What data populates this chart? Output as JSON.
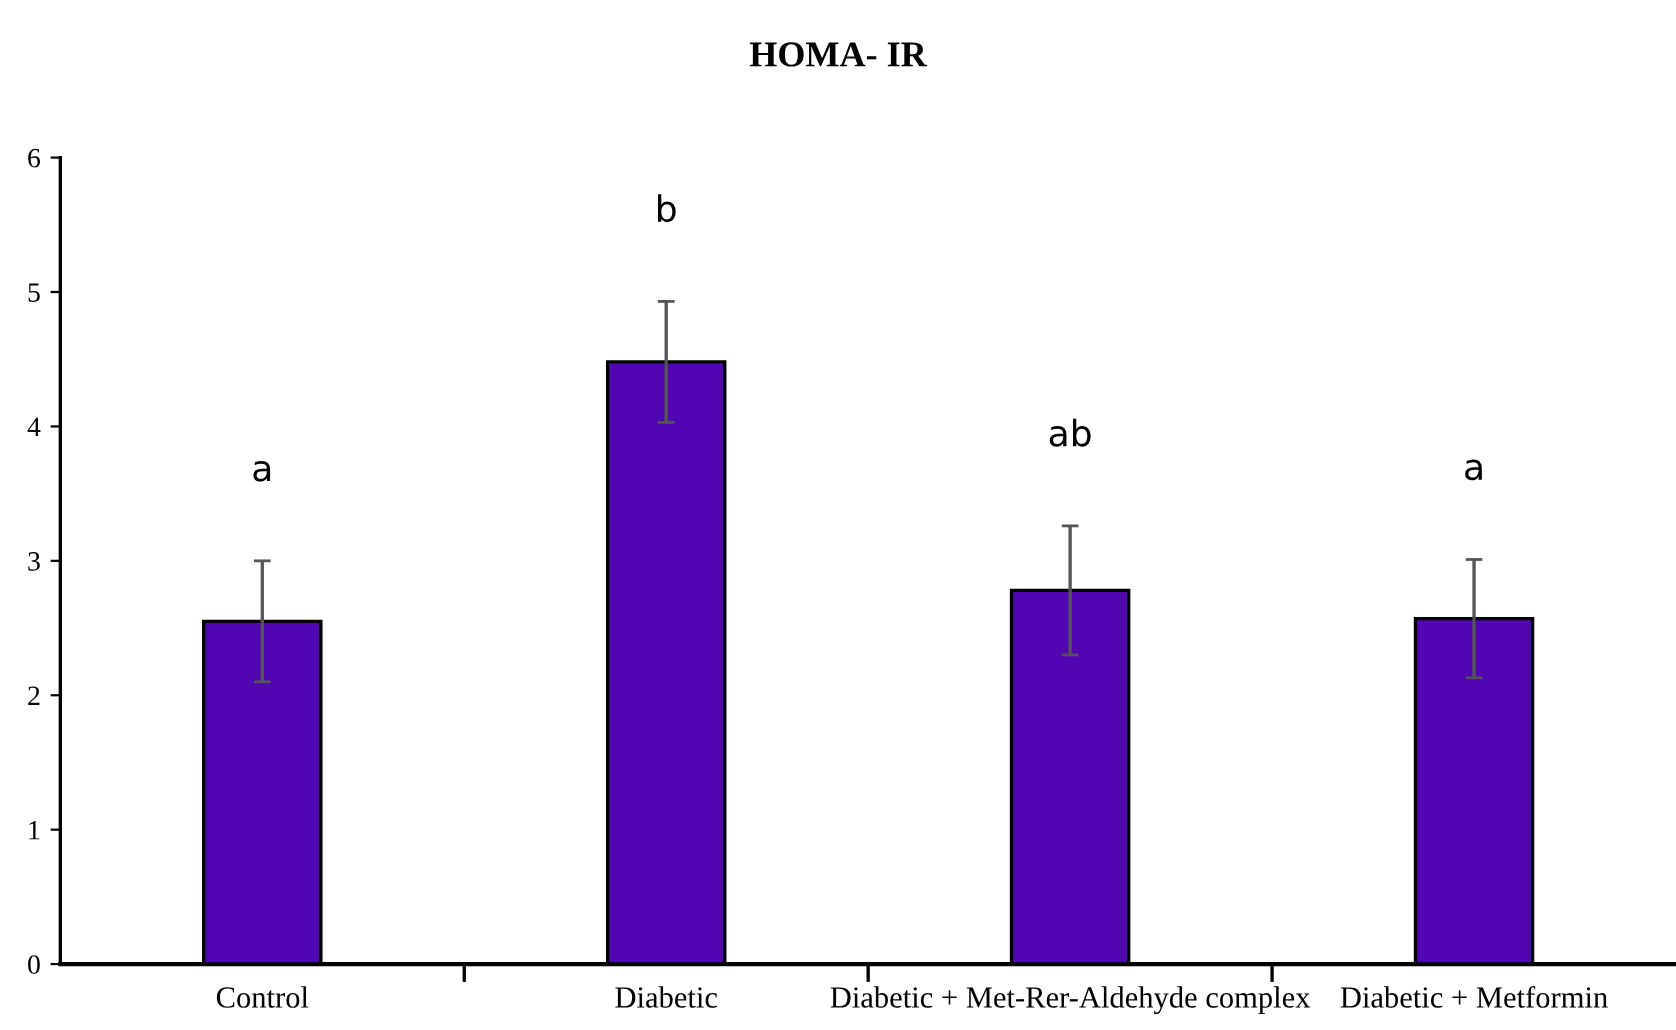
{
  "chart_data": {
    "type": "bar",
    "title": "HOMA- IR",
    "categories": [
      "Control",
      "Diabetic",
      "Diabetic + Met-Rer-Aldehyde complex",
      "Diabetic + Metformin"
    ],
    "values": [
      2.55,
      4.48,
      2.78,
      2.57
    ],
    "errors": [
      0.45,
      0.45,
      0.48,
      0.44
    ],
    "color": "#5006b0",
    "ylim": [
      0,
      6
    ],
    "yticks": [
      0,
      1,
      2,
      3,
      4,
      5,
      6
    ],
    "grid": false,
    "annotations": [
      "a",
      "b",
      "ab",
      "a"
    ]
  }
}
